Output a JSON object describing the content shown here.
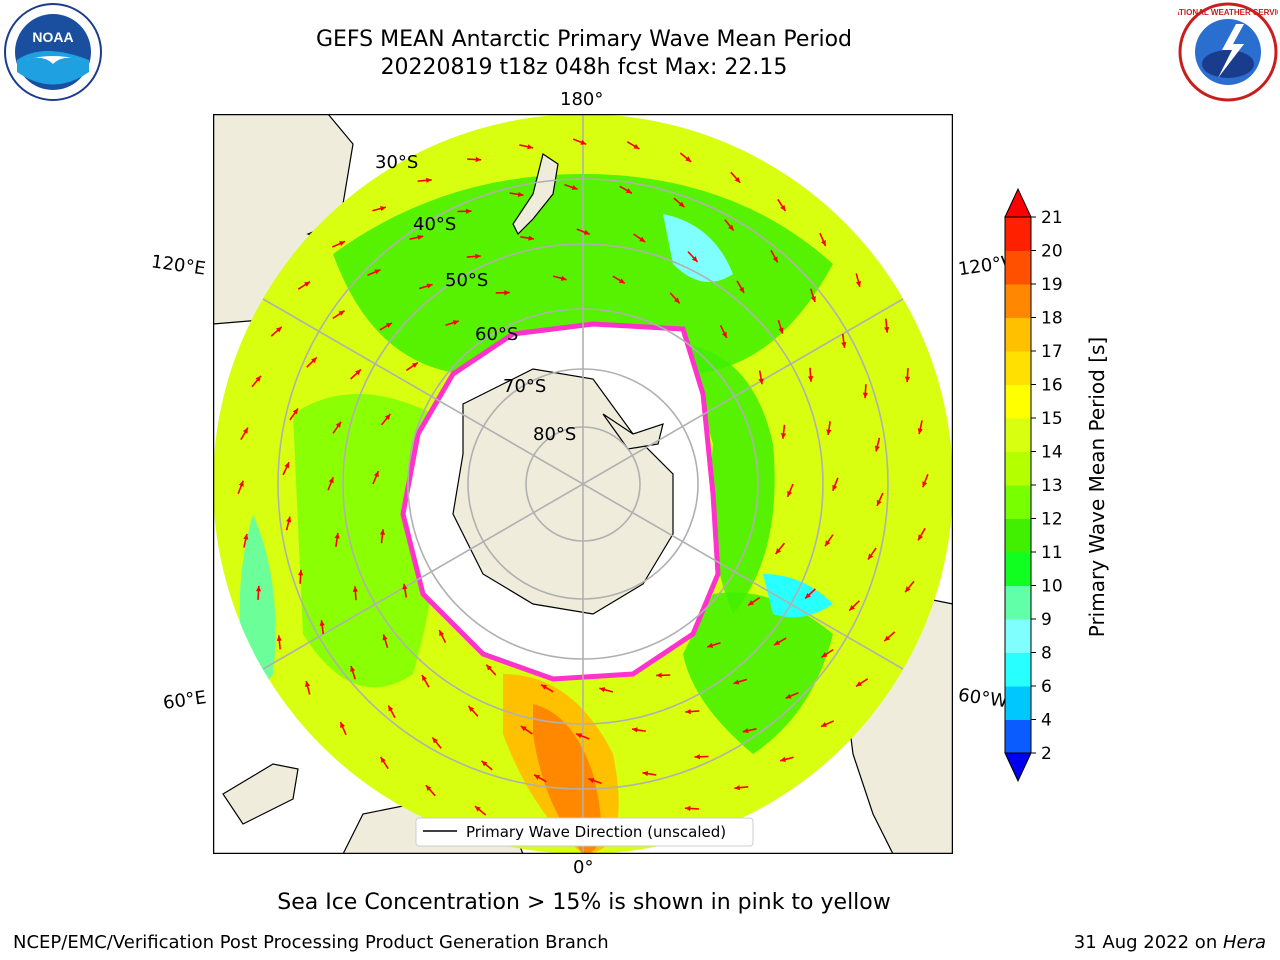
{
  "title": {
    "line1": "GEFS MEAN Antarctic Primary Wave Mean Period",
    "line2": "20220819 t18z 048h fcst   Max: 22.15"
  },
  "map": {
    "projection": "south polar stereographic",
    "longitude_labels": [
      "180°",
      "120°E",
      "120°W",
      "60°E",
      "60°W",
      "0°"
    ],
    "latitude_labels": [
      "30°S",
      "40°S",
      "50°S",
      "60°S",
      "70°S",
      "80°S"
    ],
    "legend": "Primary Wave Direction (unscaled)",
    "colors": {
      "land": "#efecdc",
      "grid": "#b0b0b0",
      "arrow": "#ff0000",
      "ice_edge": "#ff33cc"
    }
  },
  "colorbar": {
    "label": "Primary Wave Mean Period [s]",
    "ticks": [
      "2",
      "4",
      "6",
      "8",
      "9",
      "10",
      "11",
      "12",
      "13",
      "14",
      "15",
      "16",
      "17",
      "18",
      "19",
      "20",
      "21"
    ],
    "colors": [
      "#0a5cff",
      "#00c8ff",
      "#28ffff",
      "#80ffff",
      "#60ffa8",
      "#10ff20",
      "#40f000",
      "#78ff00",
      "#b4ff00",
      "#d8ff10",
      "#ffff00",
      "#ffe000",
      "#ffc000",
      "#ff8800",
      "#ff5000",
      "#ff2000"
    ],
    "under_color": "#0000ee",
    "over_color": "#ff0000"
  },
  "note": "Sea Ice Concentration > 15% is shown in pink to yellow",
  "footer": {
    "left": "NCEP/EMC/Verification Post Processing Product Generation Branch",
    "right_prefix": "31 Aug 2022 on ",
    "right_machine": "Hera"
  },
  "logos": {
    "noaa": "NOAA",
    "nws": "NATIONAL WEATHER SERVICE"
  }
}
